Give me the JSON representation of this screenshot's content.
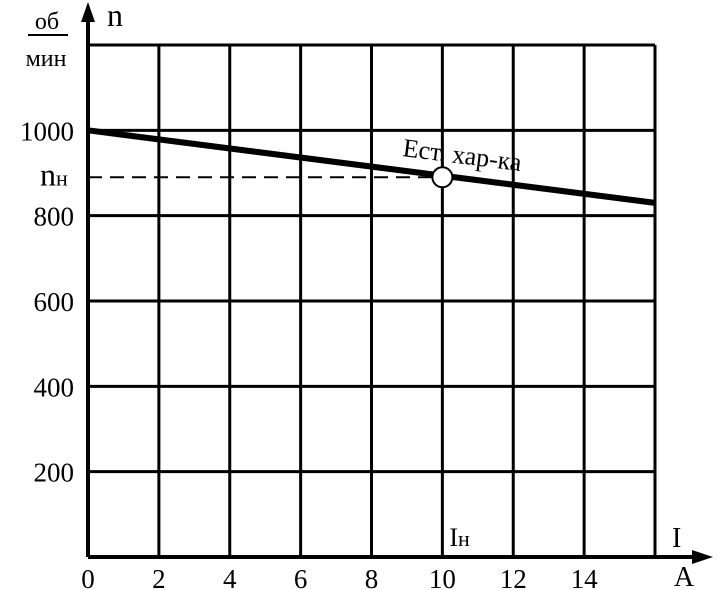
{
  "chart_data": {
    "type": "line",
    "x_axis": {
      "name": "I",
      "unit": "A",
      "ticks": [
        0,
        2,
        4,
        6,
        8,
        10,
        12,
        14
      ],
      "tick_labels": [
        "0",
        "2",
        "4",
        "6",
        "8",
        "10",
        "12",
        "14"
      ],
      "range": [
        0,
        16
      ]
    },
    "y_axis": {
      "name": "n",
      "unit_numerator": "об",
      "unit_denominator": "мин",
      "ticks": [
        200,
        400,
        600,
        800,
        1000
      ],
      "tick_labels": [
        "200",
        "400",
        "600",
        "800",
        "1000"
      ],
      "range": [
        0,
        1200
      ]
    },
    "grid": true,
    "series": [
      {
        "name": "Ест. хар-ка",
        "x": [
          0,
          16
        ],
        "y": [
          1000,
          830
        ],
        "color": "#000000"
      }
    ],
    "rated_point": {
      "x": 10,
      "y": 890,
      "x_label": "Iн",
      "y_label": "nн"
    }
  }
}
